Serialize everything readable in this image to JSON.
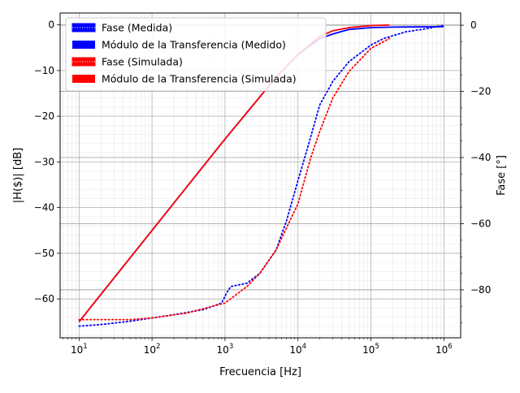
{
  "chart_data": {
    "type": "line",
    "title": "",
    "xlabel": "Frecuencia [Hz]",
    "ylabel_left": "|H($)| [dB]",
    "ylabel_right": "Fase [°]",
    "x_scale": "log",
    "xlim": [
      5.5,
      1700000
    ],
    "ylim_left": [
      -68.5,
      2.6
    ],
    "ylim_right": [
      -94.5,
      3.7
    ],
    "x_ticks": [
      {
        "value": 10,
        "base": "10",
        "exp": "1"
      },
      {
        "value": 100,
        "base": "10",
        "exp": "2"
      },
      {
        "value": 1000,
        "base": "10",
        "exp": "3"
      },
      {
        "value": 10000,
        "base": "10",
        "exp": "4"
      },
      {
        "value": 100000,
        "base": "10",
        "exp": "5"
      },
      {
        "value": 1000000,
        "base": "10",
        "exp": "6"
      }
    ],
    "y_ticks_left": [
      {
        "value": 0,
        "label": "0"
      },
      {
        "value": -10,
        "label": "−10"
      },
      {
        "value": -20,
        "label": "−20"
      },
      {
        "value": -30,
        "label": "−30"
      },
      {
        "value": -40,
        "label": "−40"
      },
      {
        "value": -50,
        "label": "−50"
      },
      {
        "value": -60,
        "label": "−60"
      }
    ],
    "y_ticks_right": [
      {
        "value": 0,
        "label": "0"
      },
      {
        "value": -20,
        "label": "−20"
      },
      {
        "value": -40,
        "label": "−40"
      },
      {
        "value": -60,
        "label": "−60"
      },
      {
        "value": -80,
        "label": "−80"
      }
    ],
    "grid": true,
    "legend_position": "top-left",
    "series": [
      {
        "name": "Fase (Medida)",
        "axis": "right",
        "color": "#0000ff",
        "style": "dotted",
        "x": [
          10,
          20,
          50,
          100,
          200,
          500,
          900,
          1050,
          1200,
          2000,
          3000,
          5000,
          7000,
          10000,
          14000,
          20000,
          30000,
          50000,
          100000,
          150000,
          300000,
          600000,
          1000000
        ],
        "y": [
          -91,
          -90.5,
          -89.5,
          -88.5,
          -87.5,
          -86,
          -84,
          -81,
          -79,
          -78,
          -75,
          -68,
          -59,
          -47,
          -36,
          -24,
          -17,
          -11,
          -6,
          -4,
          -2,
          -1,
          0
        ]
      },
      {
        "name": "Módulo de la Transferencia (Medido)",
        "axis": "left",
        "color": "#0000ff",
        "style": "solid",
        "x": [
          10,
          100,
          1000,
          5000,
          10000,
          20000,
          30000,
          50000,
          100000,
          200000,
          1000000
        ],
        "y": [
          -65,
          -45,
          -25,
          -11.5,
          -6.5,
          -3,
          -2,
          -1,
          -0.6,
          -0.5,
          -0.4
        ]
      },
      {
        "name": "Fase (Simulada)",
        "axis": "right",
        "color": "#ff0000",
        "style": "dotted",
        "x": [
          10,
          50,
          100,
          300,
          1000,
          2000,
          3000,
          5000,
          10000,
          15000,
          20000,
          30000,
          50000,
          100000,
          180000
        ],
        "y": [
          -89,
          -89,
          -88.5,
          -87,
          -84,
          -79,
          -75,
          -68,
          -54,
          -40,
          -32,
          -22,
          -14,
          -7,
          -4
        ]
      },
      {
        "name": "Módulo de la Transferencia (Simulada)",
        "axis": "left",
        "color": "#ff0000",
        "style": "solid",
        "x": [
          10,
          100,
          1000,
          5000,
          10000,
          20000,
          30000,
          50000,
          100000,
          180000
        ],
        "y": [
          -65,
          -45,
          -25,
          -11.5,
          -6.5,
          -2.5,
          -1.3,
          -0.6,
          -0.15,
          -0.05
        ]
      }
    ]
  }
}
